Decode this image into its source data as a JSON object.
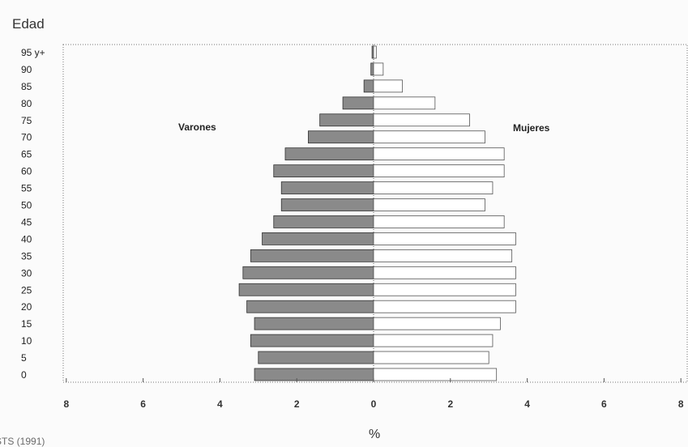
{
  "chart_data": {
    "type": "bar",
    "orientation": "horizontal",
    "subtype": "population-pyramid",
    "title": "",
    "ylabel": "Edad",
    "xlabel": "%",
    "xlim": [
      -8,
      8
    ],
    "xticks": [
      "8",
      "6",
      "4",
      "2",
      "0",
      "2",
      "4",
      "6",
      "8"
    ],
    "categories": [
      "0",
      "5",
      "10",
      "15",
      "20",
      "25",
      "30",
      "35",
      "40",
      "45",
      "50",
      "55",
      "60",
      "65",
      "70",
      "75",
      "80",
      "85",
      "90",
      "95 y+"
    ],
    "series": [
      {
        "name": "Varones",
        "side": "left",
        "color": "#8a8a8a",
        "values": [
          3.1,
          3.0,
          3.2,
          3.1,
          3.3,
          3.5,
          3.4,
          3.2,
          2.9,
          2.6,
          2.4,
          2.4,
          2.6,
          2.3,
          1.7,
          1.4,
          0.8,
          0.25,
          0.07,
          0.04
        ]
      },
      {
        "name": "Mujeres",
        "side": "right",
        "color": "#ffffff",
        "values": [
          3.2,
          3.0,
          3.1,
          3.3,
          3.7,
          3.7,
          3.7,
          3.6,
          3.7,
          3.4,
          2.9,
          3.1,
          3.4,
          3.4,
          2.9,
          2.5,
          1.6,
          0.75,
          0.25,
          0.07
        ]
      }
    ],
    "grid": false,
    "legend": "inline-labels"
  },
  "fragments": {
    "top_text": "",
    "bottom_text": "STS (1991)"
  }
}
